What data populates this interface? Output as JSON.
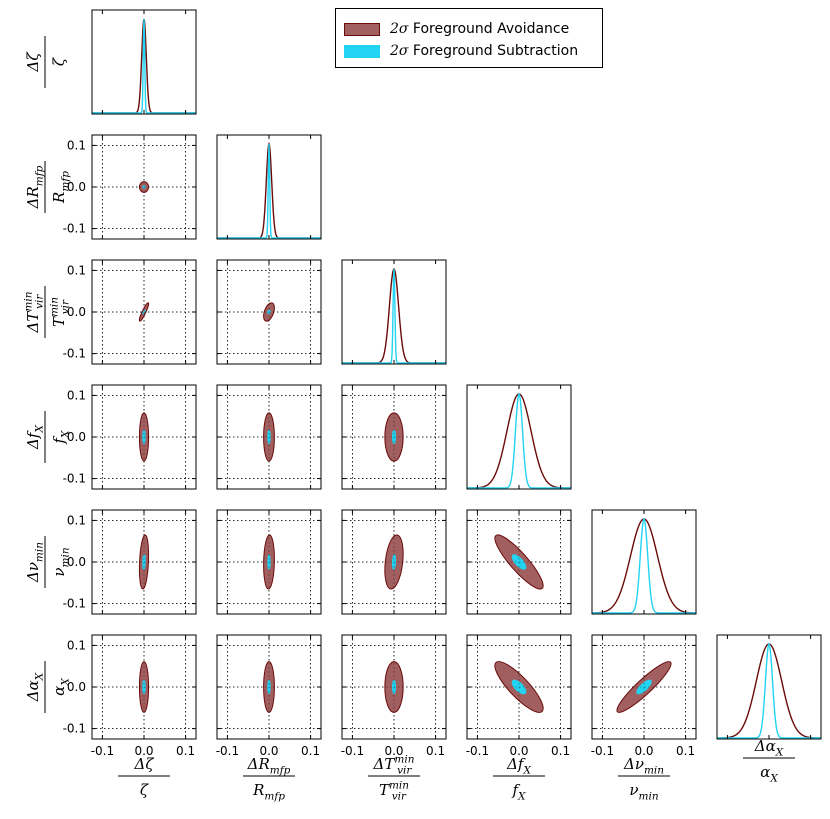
{
  "chart_data": {
    "type": "corner",
    "parameters": [
      "zeta",
      "R_mfp",
      "T_vir_min",
      "f_X",
      "nu_min",
      "alpha_X"
    ],
    "parameter_labels": [
      {
        "num": "Δζ",
        "den": "ζ"
      },
      {
        "num": "ΔR_{mfp}",
        "den": "R_{mfp}"
      },
      {
        "num": "ΔT^{min}_{vir}",
        "den": "T^{min}_{vir}"
      },
      {
        "num": "Δf_X",
        "den": "f_X"
      },
      {
        "num": "Δν_{min}",
        "den": "ν_{min}"
      },
      {
        "num": "Δα_X",
        "den": "α_X"
      }
    ],
    "range": [
      -0.125,
      0.125
    ],
    "ticks": [
      -0.1,
      0.0,
      0.1
    ],
    "tick_labels": [
      "-0.1",
      "0.0",
      "0.1"
    ],
    "grid": true,
    "series": [
      {
        "name": "Foreground Avoidance",
        "label_prefix": "2σ",
        "fill": "#a25f5f",
        "edge": "#6b0a0a",
        "sigma": [
          0.0055,
          0.0065,
          0.011,
          0.029,
          0.0325,
          0.0305
        ],
        "correlation": [
          [
            0,
            1,
            0.0
          ],
          [
            0,
            2,
            0.9
          ],
          [
            0,
            3,
            0.0
          ],
          [
            0,
            4,
            0.25
          ],
          [
            0,
            5,
            0.0
          ],
          [
            1,
            2,
            0.45
          ],
          [
            1,
            3,
            0.0
          ],
          [
            1,
            4,
            0.1
          ],
          [
            1,
            5,
            0.0
          ],
          [
            2,
            3,
            0.0
          ],
          [
            2,
            4,
            0.3
          ],
          [
            2,
            5,
            0.0
          ],
          [
            3,
            4,
            -0.88
          ],
          [
            3,
            5,
            -0.84
          ],
          [
            4,
            5,
            0.92
          ]
        ]
      },
      {
        "name": "Foreground Subtraction",
        "label_prefix": "2σ",
        "fill": "#22d3f2",
        "edge": "#22d3f2",
        "sigma": [
          0.0018,
          0.0018,
          0.0022,
          0.0085,
          0.009,
          0.0085
        ],
        "correlation": [
          [
            0,
            1,
            0.0
          ],
          [
            0,
            2,
            0.8
          ],
          [
            0,
            3,
            0.0
          ],
          [
            0,
            4,
            0.2
          ],
          [
            0,
            5,
            0.0
          ],
          [
            1,
            2,
            0.3
          ],
          [
            1,
            3,
            0.0
          ],
          [
            1,
            4,
            0.0
          ],
          [
            1,
            5,
            0.0
          ],
          [
            2,
            3,
            0.0
          ],
          [
            2,
            4,
            0.2
          ],
          [
            2,
            5,
            0.0
          ],
          [
            3,
            4,
            -0.7
          ],
          [
            3,
            5,
            -0.65
          ],
          [
            4,
            5,
            0.75
          ]
        ]
      }
    ],
    "legend_position": "top-right"
  }
}
